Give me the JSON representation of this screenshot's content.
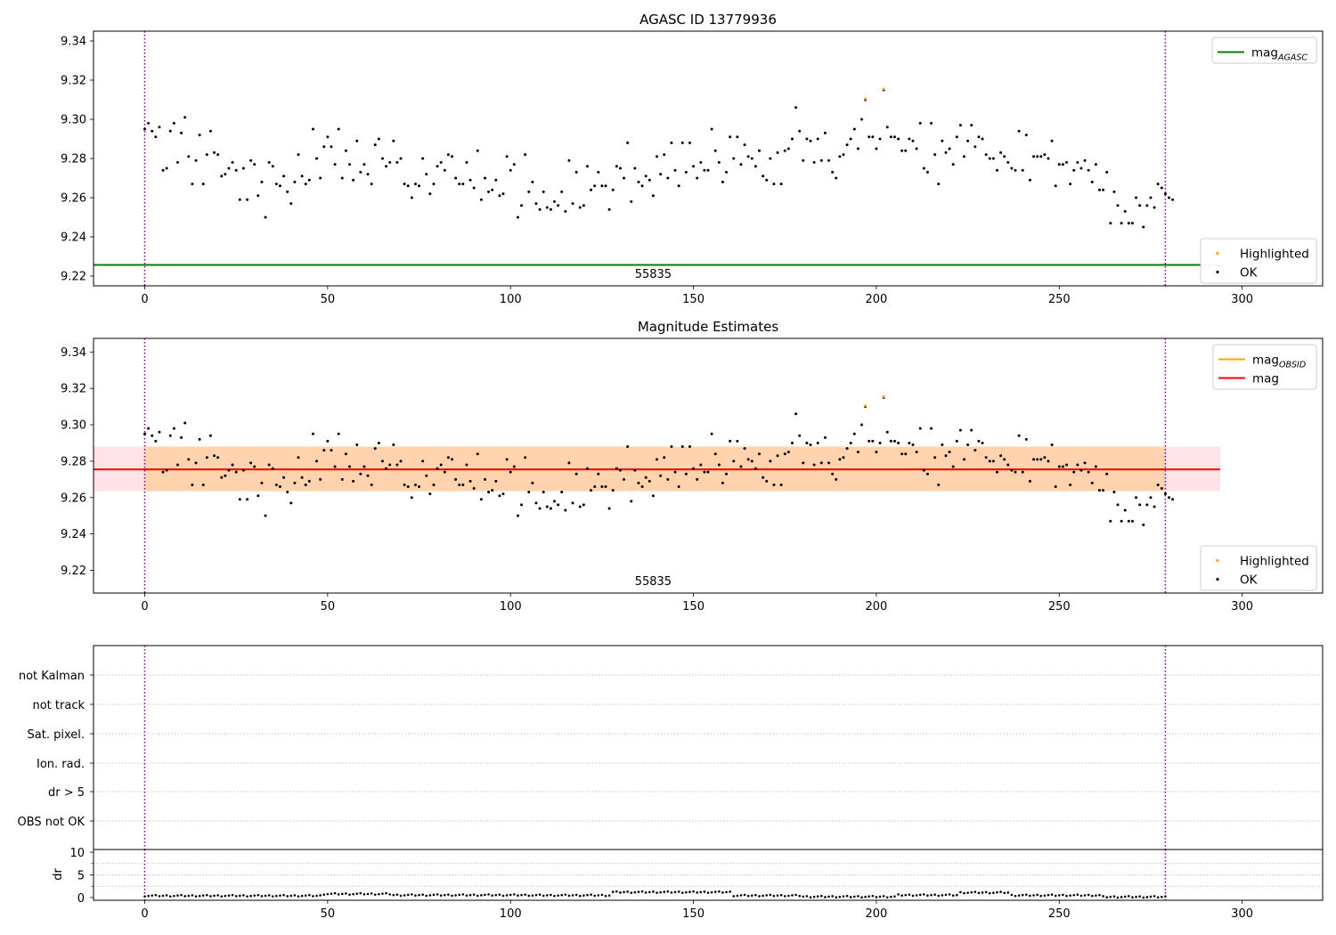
{
  "chart_data": [
    {
      "type": "scatter",
      "title": "AGASC ID 13779936",
      "xlim": [
        -14,
        322
      ],
      "ylim": [
        9.215,
        9.345
      ],
      "yticks": [
        "9.22",
        "9.24",
        "9.26",
        "9.28",
        "9.30",
        "9.32",
        "9.34"
      ],
      "xticks": [
        "0",
        "50",
        "100",
        "150",
        "200",
        "250",
        "300"
      ],
      "obsid_label": "55835",
      "obsid_label_x": 139,
      "vlines_x": [
        0,
        279
      ],
      "hlines": [
        {
          "name": "mag$_{AGASC}$",
          "label": "mag",
          "subscript": "AGASC",
          "y": 9.2257,
          "x": [
            -14,
            294
          ],
          "color": "#008000"
        }
      ],
      "legend_lines": [
        {
          "label": "mag",
          "subscript": "AGASC",
          "color": "#008000"
        }
      ],
      "legend_markers": [
        {
          "label": "Highlighted",
          "color": "#ffa500"
        },
        {
          "label": "OK",
          "color": "#000000"
        }
      ],
      "series": "magnitude"
    },
    {
      "type": "scatter",
      "title": "Magnitude Estimates",
      "xlim": [
        -14,
        322
      ],
      "ylim": [
        9.2075,
        9.3475
      ],
      "yticks": [
        "9.22",
        "9.24",
        "9.26",
        "9.28",
        "9.30",
        "9.32",
        "9.34"
      ],
      "xticks": [
        "0",
        "50",
        "100",
        "150",
        "200",
        "250",
        "300"
      ],
      "obsid_label": "55835",
      "obsid_label_x": 139,
      "vlines_x": [
        0,
        279
      ],
      "bands": [
        {
          "y": [
            9.2635,
            9.288
          ],
          "x": [
            -14,
            294
          ],
          "color": "#ffc0cb",
          "opacity": 0.45
        },
        {
          "y": [
            9.2635,
            9.288
          ],
          "x": [
            0,
            279
          ],
          "color": "#ffa500",
          "opacity": 0.25
        }
      ],
      "hlines": [
        {
          "label": "mag",
          "subscript": "OBSID",
          "y": 9.2755,
          "x": [
            0,
            279
          ],
          "color": "#ffa500"
        },
        {
          "label": "mag",
          "subscript": "",
          "y": 9.2755,
          "x": [
            -14,
            294
          ],
          "color": "#ff0000"
        }
      ],
      "legend_lines": [
        {
          "label": "mag",
          "subscript": "OBSID",
          "color": "#ffa500"
        },
        {
          "label": "mag",
          "subscript": "",
          "color": "#ff0000"
        }
      ],
      "legend_markers": [
        {
          "label": "Highlighted",
          "color": "#ffa500"
        },
        {
          "label": "OK",
          "color": "#000000"
        }
      ],
      "series": "magnitude"
    },
    {
      "type": "scatter",
      "title": "",
      "flag_labels": [
        "not Kalman",
        "not track",
        "Sat. pixel.",
        "Ion. rad.",
        "dr > 5",
        "OBS not OK"
      ],
      "vlines_x": [
        0,
        279
      ],
      "xlim": [
        -14,
        322
      ],
      "xticks": [
        "0",
        "50",
        "100",
        "150",
        "200",
        "250",
        "300"
      ]
    },
    {
      "type": "scatter",
      "title": "",
      "ylabel": "dr",
      "ylim": [
        -0.6,
        10.6
      ],
      "yticks": [
        "0",
        "5",
        "10"
      ],
      "xticks": [
        "0",
        "50",
        "100",
        "150",
        "200",
        "250",
        "300"
      ],
      "xlim": [
        -14,
        322
      ],
      "vlines_x": [
        0,
        279
      ],
      "dr_segments": [
        {
          "x": [
            0,
            48
          ],
          "y": 0.4
        },
        {
          "x": [
            49,
            67
          ],
          "y": 0.8
        },
        {
          "x": [
            68,
            105
          ],
          "y": 0.55
        },
        {
          "x": [
            106,
            127
          ],
          "y": 0.5
        },
        {
          "x": [
            128,
            160
          ],
          "y": 1.2
        },
        {
          "x": [
            161,
            179
          ],
          "y": 0.45
        },
        {
          "x": [
            180,
            205
          ],
          "y": 0.2
        },
        {
          "x": [
            206,
            222
          ],
          "y": 0.55
        },
        {
          "x": [
            223,
            236
          ],
          "y": 1.1
        },
        {
          "x": [
            237,
            261
          ],
          "y": 0.5
        },
        {
          "x": [
            262,
            279
          ],
          "y": 0.15
        }
      ]
    }
  ],
  "points": {
    "x_count": 280,
    "mag": [
      9.295,
      9.298,
      9.294,
      9.291,
      9.296,
      9.274,
      9.275,
      9.294,
      9.298,
      9.278,
      9.293,
      9.301,
      9.281,
      9.267,
      9.279,
      9.292,
      9.267,
      9.282,
      9.294,
      9.283,
      9.282,
      9.271,
      9.272,
      9.275,
      9.278,
      9.274,
      9.259,
      9.275,
      9.259,
      9.279,
      9.277,
      9.261,
      9.268,
      9.25,
      9.278,
      9.276,
      9.267,
      9.266,
      9.271,
      9.263,
      9.257,
      9.268,
      9.282,
      9.271,
      9.267,
      9.269,
      9.295,
      9.28,
      9.27,
      9.286,
      9.291,
      9.286,
      9.277,
      9.295,
      9.27,
      9.284,
      9.277,
      9.269,
      9.289,
      9.273,
      9.277,
      9.272,
      9.267,
      9.287,
      9.29,
      9.28,
      9.276,
      9.278,
      9.289,
      9.278,
      9.28,
      9.267,
      9.266,
      9.26,
      9.267,
      9.266,
      9.28,
      9.272,
      9.262,
      9.267,
      9.276,
      9.278,
      9.274,
      9.282,
      9.281,
      9.27,
      9.267,
      9.267,
      9.278,
      9.269,
      9.265,
      9.284,
      9.259,
      9.27,
      9.263,
      9.264,
      9.269,
      9.261,
      9.262,
      9.281,
      9.274,
      9.277,
      9.25,
      9.256,
      9.282,
      9.263,
      9.268,
      9.257,
      9.254,
      9.263,
      9.255,
      9.254,
      9.258,
      9.256,
      9.263,
      9.253,
      9.279,
      9.257,
      9.273,
      9.255,
      9.256,
      9.276,
      9.264,
      9.266,
      9.273,
      9.266,
      9.266,
      9.254,
      9.264,
      9.276,
      9.275,
      9.27,
      9.288,
      9.258,
      9.275,
      9.268,
      9.266,
      9.271,
      9.269,
      9.261,
      9.281,
      9.272,
      9.282,
      9.27,
      9.288,
      9.274,
      9.266,
      9.288,
      9.273,
      9.288,
      9.276,
      9.27,
      9.278,
      9.274,
      9.274,
      9.295,
      9.284,
      9.278,
      9.268,
      9.273,
      9.291,
      9.28,
      9.291,
      9.277,
      9.287,
      9.281,
      9.28,
      9.276,
      9.284,
      9.271,
      9.269,
      9.28,
      9.267,
      9.283,
      9.267,
      9.284,
      9.285,
      9.29,
      9.306,
      9.294,
      9.279,
      9.29,
      9.289,
      9.278,
      9.29,
      9.279,
      9.293,
      9.279,
      9.273,
      9.27,
      9.281,
      9.282,
      9.287,
      9.29,
      9.295,
      9.285,
      9.3,
      9.31,
      9.291,
      9.291,
      9.285,
      9.29,
      9.315,
      9.296,
      9.291,
      9.291,
      9.29,
      9.284,
      9.284,
      9.29,
      9.289,
      9.285,
      9.298,
      9.275,
      9.273,
      9.298,
      9.282,
      9.267,
      9.289,
      9.283,
      9.285,
      9.277,
      9.291,
      9.297,
      9.281,
      9.289,
      9.297,
      9.286,
      9.291,
      9.29,
      9.282,
      9.28,
      9.28,
      9.274,
      9.283,
      9.281,
      9.278,
      9.275,
      9.274,
      9.294,
      9.274,
      9.292,
      9.269,
      9.281,
      9.281,
      9.281,
      9.282,
      9.28,
      9.289,
      9.266,
      9.277,
      9.277,
      9.278,
      9.267,
      9.274,
      9.278,
      9.275,
      9.279,
      9.274,
      9.268,
      9.277,
      9.264,
      9.264,
      9.273,
      9.247,
      9.263,
      9.256,
      9.247,
      9.253,
      9.247,
      9.247,
      9.26,
      9.256,
      9.245,
      9.256,
      9.26,
      9.255,
      9.267,
      9.265,
      9.262,
      9.26,
      9.259
    ],
    "highlighted": [
      {
        "x": 197,
        "y": 9.3105
      },
      {
        "x": 202,
        "y": 9.3155
      }
    ]
  }
}
